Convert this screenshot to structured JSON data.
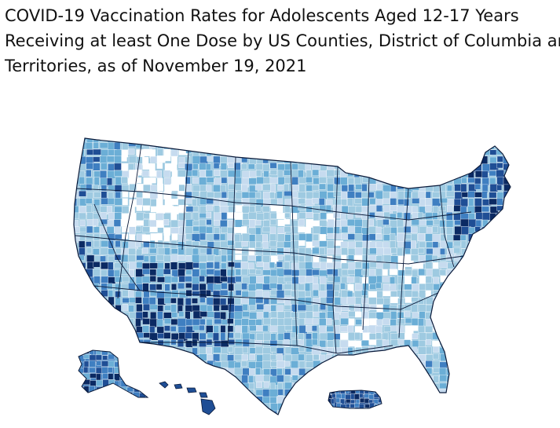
{
  "title": {
    "line1": "COVID-19 Vaccination Rates for Adolescents Aged 12-17 Years",
    "line2": "Receiving at least One Dose by US Counties, District of Columbia and",
    "line3": "Territories, as of November 19, 2021"
  },
  "map": {
    "type": "county-choropleth",
    "regions_shown": [
      "Contiguous US",
      "Alaska",
      "Hawaii",
      "Puerto Rico"
    ],
    "palette": [
      "#ffffff",
      "#c6dbef",
      "#9ecae1",
      "#6baed6",
      "#3f7fc1",
      "#1f4e95",
      "#0b2a63"
    ],
    "border_color": "#ffffff",
    "state_border_color": "#0a1a3a"
  }
}
